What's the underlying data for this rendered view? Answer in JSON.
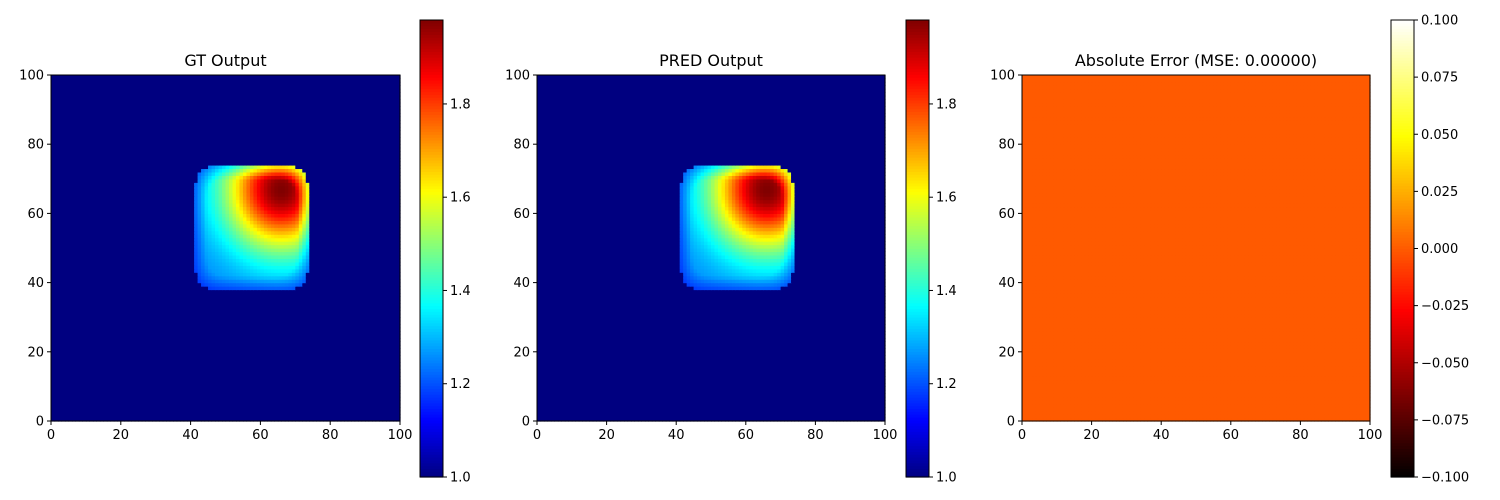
{
  "chart_data": [
    {
      "type": "heatmap",
      "title": "GT Output",
      "xlim": [
        0,
        100
      ],
      "ylim": [
        0,
        100
      ],
      "xticks": [
        "0",
        "20",
        "40",
        "60",
        "80",
        "100"
      ],
      "yticks": [
        "0",
        "20",
        "40",
        "60",
        "80",
        "100"
      ],
      "colormap": "jet",
      "field": {
        "background": 1.0,
        "peak": 1.98,
        "region_x": [
          41,
          74
        ],
        "region_y": [
          38,
          74
        ],
        "peak_location": [
          66,
          67
        ],
        "shading": "values fall off from the peak near (66, 67) to about 1.25 at the region edge"
      },
      "colorbar": {
        "range": [
          1.0,
          1.98
        ],
        "ticks": [
          "1.0",
          "1.2",
          "1.4",
          "1.6",
          "1.8"
        ]
      }
    },
    {
      "type": "heatmap",
      "title": "PRED Output",
      "xlim": [
        0,
        100
      ],
      "ylim": [
        0,
        100
      ],
      "xticks": [
        "0",
        "20",
        "40",
        "60",
        "80",
        "100"
      ],
      "yticks": [
        "0",
        "20",
        "40",
        "60",
        "80",
        "100"
      ],
      "colormap": "jet",
      "field": {
        "background": 1.0,
        "peak": 1.98,
        "region_x": [
          41,
          74
        ],
        "region_y": [
          38,
          74
        ],
        "peak_location": [
          66,
          67
        ],
        "shading": "values fall off from the peak near (66, 67) to about 1.25 at the region edge"
      },
      "colorbar": {
        "range": [
          1.0,
          1.98
        ],
        "ticks": [
          "1.0",
          "1.2",
          "1.4",
          "1.6",
          "1.8"
        ]
      }
    },
    {
      "type": "heatmap",
      "title": "Absolute Error (MSE: 0.00000)",
      "xlim": [
        0,
        100
      ],
      "ylim": [
        0,
        100
      ],
      "xticks": [
        "0",
        "20",
        "40",
        "60",
        "80",
        "100"
      ],
      "yticks": [
        "0",
        "20",
        "40",
        "60",
        "80",
        "100"
      ],
      "colormap": "hot",
      "field": {
        "constant": 0.0
      },
      "colorbar": {
        "range": [
          -0.1,
          0.1
        ],
        "ticks": [
          "−0.100",
          "−0.075",
          "−0.050",
          "−0.025",
          "0.000",
          "0.025",
          "0.050",
          "0.075",
          "0.100"
        ]
      }
    }
  ]
}
